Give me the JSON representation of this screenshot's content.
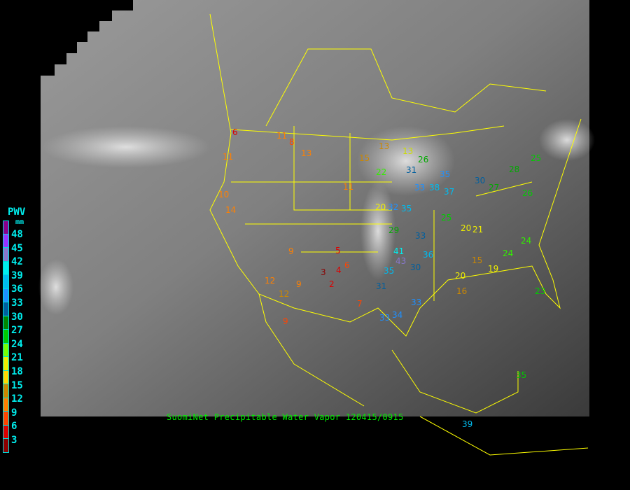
{
  "title": "SuomiNet Precipitable Water Vapor 120415/0915",
  "legend": {
    "title": "PWV",
    "unit": "mm",
    "labels": [
      "48",
      "45",
      "42",
      "39",
      "36",
      "33",
      "30",
      "27",
      "24",
      "21",
      "18",
      "15",
      "12",
      "9",
      "6",
      "3"
    ],
    "colors": [
      "#8b008b",
      "#9933ff",
      "#8877cc",
      "#00eeee",
      "#00bbee",
      "#1e90ff",
      "#005f9f",
      "#008800",
      "#00cc00",
      "#77ff00",
      "#eeee00",
      "#ffd700",
      "#cc8800",
      "#ff8000",
      "#ff4400",
      "#dd0000",
      "#8b0000"
    ]
  },
  "stations": [
    {
      "v": "6",
      "c": "#dd0000"
    },
    {
      "v": "11",
      "c": "#ff8000"
    },
    {
      "v": "8",
      "c": "#ff4400"
    },
    {
      "v": "13",
      "c": "#ff8000"
    },
    {
      "v": "15",
      "c": "#cc8800"
    },
    {
      "v": "13",
      "c": "#cc8800"
    },
    {
      "v": "13",
      "c": "#ccdd00"
    },
    {
      "v": "22",
      "c": "#33ee00"
    },
    {
      "v": "26",
      "c": "#00aa00"
    },
    {
      "v": "31",
      "c": "#005f9f"
    },
    {
      "v": "35",
      "c": "#1e90ff"
    },
    {
      "v": "33",
      "c": "#1e90ff"
    },
    {
      "v": "38",
      "c": "#00bbee"
    },
    {
      "v": "28",
      "c": "#00aa00"
    },
    {
      "v": "27",
      "c": "#00aa00"
    },
    {
      "v": "30",
      "c": "#005f9f"
    },
    {
      "v": "20",
      "c": "#eeee00"
    },
    {
      "v": "32",
      "c": "#1e90ff"
    },
    {
      "v": "35",
      "c": "#00bbee"
    },
    {
      "v": "29",
      "c": "#00aa00"
    },
    {
      "v": "25",
      "c": "#00cc00"
    },
    {
      "v": "20",
      "c": "#eeee00"
    },
    {
      "v": "21",
      "c": "#eeee00"
    },
    {
      "v": "24",
      "c": "#33ee00"
    },
    {
      "v": "9",
      "c": "#ff8000"
    },
    {
      "v": "5",
      "c": "#dd0000"
    },
    {
      "v": "6",
      "c": "#ff4400"
    },
    {
      "v": "3",
      "c": "#8b0000"
    },
    {
      "v": "2",
      "c": "#dd0000"
    },
    {
      "v": "4",
      "c": "#dd0000"
    },
    {
      "v": "41",
      "c": "#00eeee"
    },
    {
      "v": "43",
      "c": "#8877cc"
    },
    {
      "v": "35",
      "c": "#00bbee"
    },
    {
      "v": "30",
      "c": "#005f9f"
    },
    {
      "v": "31",
      "c": "#005f9f"
    },
    {
      "v": "33",
      "c": "#1e90ff"
    },
    {
      "v": "34",
      "c": "#1e90ff"
    },
    {
      "v": "33",
      "c": "#1e90ff"
    },
    {
      "v": "20",
      "c": "#eeee00"
    },
    {
      "v": "15",
      "c": "#cc8800"
    },
    {
      "v": "19",
      "c": "#eeee00"
    },
    {
      "v": "24",
      "c": "#33ee00"
    },
    {
      "v": "7",
      "c": "#ff4400"
    },
    {
      "v": "9",
      "c": "#ff8000"
    },
    {
      "v": "12",
      "c": "#cc8800"
    },
    {
      "v": "14",
      "c": "#ff8000"
    },
    {
      "v": "11",
      "c": "#ff8000"
    },
    {
      "v": "39",
      "c": "#00bbee"
    },
    {
      "v": "35",
      "c": "#00cc00"
    },
    {
      "v": "33",
      "c": "#005f9f"
    },
    {
      "v": "10",
      "c": "#ff8000"
    },
    {
      "v": "23",
      "c": "#00cc00"
    },
    {
      "v": "26",
      "c": "#00cc00"
    },
    {
      "v": "11",
      "c": "#ff8000"
    },
    {
      "v": "16",
      "c": "#cc8800"
    },
    {
      "v": "9",
      "c": "#ff4400"
    },
    {
      "v": "37",
      "c": "#00bbee"
    },
    {
      "v": "36",
      "c": "#00bbee"
    },
    {
      "v": "12",
      "c": "#ff8000"
    },
    {
      "v": "25",
      "c": "#00cc00"
    }
  ]
}
